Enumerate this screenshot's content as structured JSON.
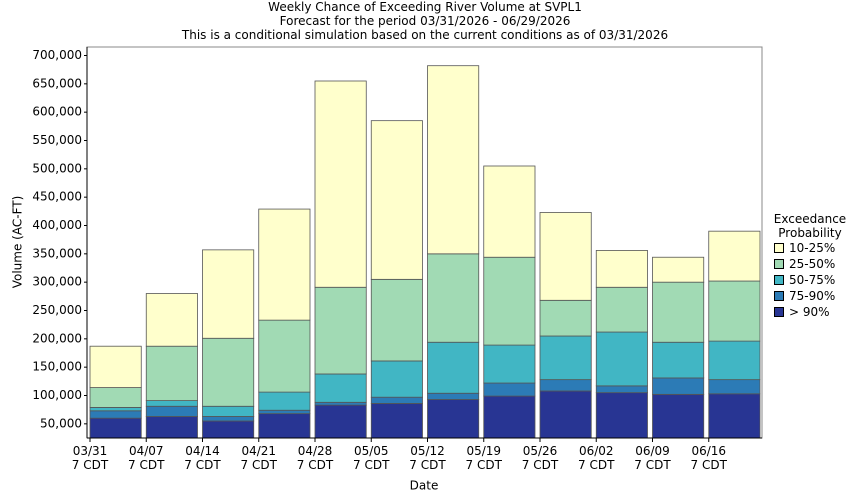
{
  "chart_data": {
    "type": "stacked-bar",
    "title": "Weekly Chance of Exceeding River Volume at SVPL1",
    "subtitle": "Forecast for the period 03/31/2026 - 06/29/2026",
    "note": "This is a conditional simulation based on the current conditions as of 03/31/2026",
    "x_label": "Date",
    "y_label": "Volume (AC-FT)",
    "legend_title": "Exceedance Probability",
    "legend_position": "right",
    "categories": [
      "03/31\n7 CDT",
      "04/07\n7 CDT",
      "04/14\n7 CDT",
      "04/21\n7 CDT",
      "04/28\n7 CDT",
      "05/05\n7 CDT",
      "05/12\n7 CDT",
      "05/19\n7 CDT",
      "05/26\n7 CDT",
      "06/02\n7 CDT",
      "06/09\n7 CDT",
      "06/16\n7 CDT"
    ],
    "series": [
      {
        "name": "> 90%",
        "color": "#283593",
        "values": [
          60000,
          63000,
          55000,
          68000,
          83000,
          86000,
          93000,
          99000,
          108000,
          105000,
          102000,
          103000
        ]
      },
      {
        "name": "75-90%",
        "color": "#2c7bb6",
        "values": [
          13000,
          18000,
          8000,
          6000,
          5000,
          11000,
          11000,
          23000,
          20000,
          12000,
          29000,
          25000
        ]
      },
      {
        "name": "50-75%",
        "color": "#41b6c4",
        "values": [
          6000,
          10000,
          18000,
          32000,
          50000,
          64000,
          90000,
          67000,
          77000,
          95000,
          63000,
          68000
        ]
      },
      {
        "name": "25-50%",
        "color": "#a1dab4",
        "values": [
          35000,
          96000,
          120000,
          127000,
          153000,
          144000,
          156000,
          155000,
          63000,
          79000,
          106000,
          106000
        ]
      },
      {
        "name": "10-25%",
        "color": "#ffffcc",
        "values": [
          73000,
          93000,
          156000,
          196000,
          364000,
          280000,
          332000,
          161000,
          155000,
          65000,
          44000,
          88000
        ]
      }
    ],
    "ylim": [
      25000,
      715000
    ],
    "yticks": [
      {
        "value": 50000,
        "label": "50,000"
      },
      {
        "value": 100000,
        "label": "100,000"
      },
      {
        "value": 150000,
        "label": "150,000"
      },
      {
        "value": 200000,
        "label": "200,000"
      },
      {
        "value": 250000,
        "label": "250,000"
      },
      {
        "value": 300000,
        "label": "300,000"
      },
      {
        "value": 350000,
        "label": "350,000"
      },
      {
        "value": 400000,
        "label": "400,000"
      },
      {
        "value": 450000,
        "label": "450,000"
      },
      {
        "value": 500000,
        "label": "500,000"
      },
      {
        "value": 550000,
        "label": "550,000"
      },
      {
        "value": 600000,
        "label": "600,000"
      },
      {
        "value": 650000,
        "label": "650,000"
      },
      {
        "value": 700000,
        "label": "700,000"
      }
    ],
    "grid": false
  }
}
